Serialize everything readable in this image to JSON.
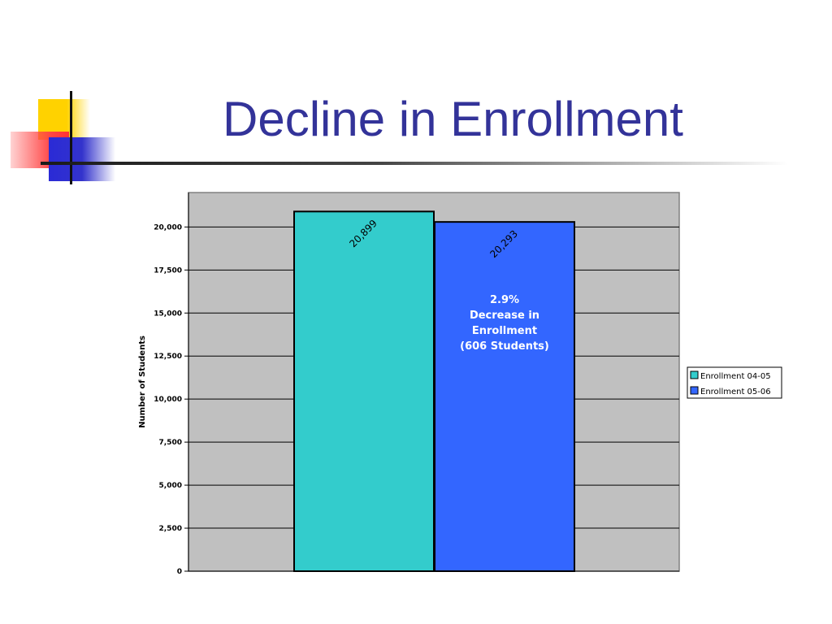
{
  "slide": {
    "title": "Decline in Enrollment"
  },
  "chart_data": {
    "type": "bar",
    "categories": [
      ""
    ],
    "series": [
      {
        "name": "Enrollment 04-05",
        "values": [
          20899
        ],
        "color": "#33cccc",
        "label": "20,899"
      },
      {
        "name": "Enrollment 05-06",
        "values": [
          20293
        ],
        "color": "#3366ff",
        "label": "20,293"
      }
    ],
    "title": "",
    "xlabel": "",
    "ylabel": "Number of Students",
    "ylim": [
      0,
      22000
    ],
    "yticks": [
      0,
      2500,
      5000,
      7500,
      10000,
      12500,
      15000,
      17500,
      20000
    ],
    "ytick_labels": [
      "0",
      "2,500",
      "5,000",
      "7,500",
      "10,000",
      "12,500",
      "15,000",
      "17,500",
      "20,000"
    ],
    "grid": true,
    "plot_background": "#c0c0c0",
    "legend_position": "right",
    "annotation": [
      "2.9%",
      "Decrease in",
      "Enrollment",
      "(606 Students)"
    ]
  }
}
